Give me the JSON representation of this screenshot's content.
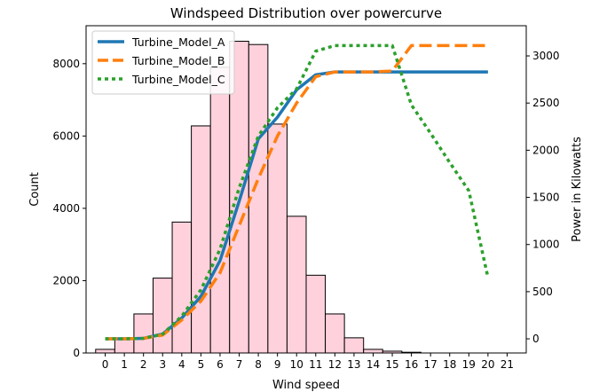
{
  "chart_data": {
    "type": "bar",
    "title": "Windspeed Distribution over powercurve",
    "xlabel": "Wind speed",
    "ylabel": "Count",
    "y2label": "Power in Kilowatts",
    "xlim": [
      -1,
      22
    ],
    "ylim": [
      0,
      9050
    ],
    "y2lim": [
      -150,
      3320
    ],
    "x_ticks": [
      0,
      1,
      2,
      3,
      4,
      5,
      6,
      7,
      8,
      9,
      10,
      11,
      12,
      13,
      14,
      15,
      16,
      17,
      18,
      19,
      20,
      21
    ],
    "y_ticks": [
      0,
      2000,
      4000,
      6000,
      8000
    ],
    "y2_ticks": [
      0,
      500,
      1000,
      1500,
      2000,
      2500,
      3000
    ],
    "grid": false,
    "legend_position": "top-left",
    "histogram": {
      "bin_width": 1,
      "bins": [
        0,
        1,
        2,
        3,
        4,
        5,
        6,
        7,
        8,
        9,
        10,
        11,
        12,
        13,
        14,
        15,
        16
      ],
      "counts": [
        100,
        410,
        1080,
        2070,
        3620,
        6280,
        7900,
        8620,
        8530,
        6330,
        3780,
        2150,
        1080,
        420,
        100,
        50,
        20
      ],
      "fill_color": "#ffd1dc",
      "edge_color": "#000000"
    },
    "series": [
      {
        "name": "Turbine_Model_A",
        "color": "#1f77b4",
        "style": "solid",
        "x": [
          0,
          1,
          2,
          3,
          4,
          5,
          6,
          7,
          8,
          9,
          10,
          11,
          12,
          13,
          14,
          15,
          16,
          17,
          18,
          19,
          20
        ],
        "values": [
          0,
          0,
          5,
          50,
          220,
          450,
          830,
          1460,
          2120,
          2350,
          2640,
          2800,
          2830,
          2830,
          2830,
          2830,
          2830,
          2830,
          2830,
          2830,
          2830
        ]
      },
      {
        "name": "Turbine_Model_B",
        "color": "#ff7f0e",
        "style": "dashed",
        "x": [
          0,
          1,
          2,
          3,
          4,
          5,
          6,
          7,
          8,
          9,
          10,
          11,
          12,
          13,
          14,
          15,
          16,
          17,
          18,
          19,
          20
        ],
        "values": [
          0,
          0,
          5,
          40,
          200,
          400,
          700,
          1200,
          1700,
          2150,
          2500,
          2780,
          2830,
          2830,
          2830,
          2840,
          3110,
          3110,
          3110,
          3110,
          3110
        ]
      },
      {
        "name": "Turbine_Model_C",
        "color": "#2ca02c",
        "style": "dotted",
        "x": [
          0,
          1,
          2,
          3,
          4,
          5,
          6,
          7,
          8,
          9,
          10,
          11,
          12,
          13,
          14,
          15,
          16,
          17,
          18,
          19,
          20
        ],
        "values": [
          0,
          0,
          5,
          50,
          240,
          520,
          950,
          1600,
          2150,
          2450,
          2650,
          3050,
          3110,
          3110,
          3110,
          3110,
          2480,
          2180,
          1870,
          1570,
          650
        ]
      }
    ]
  }
}
